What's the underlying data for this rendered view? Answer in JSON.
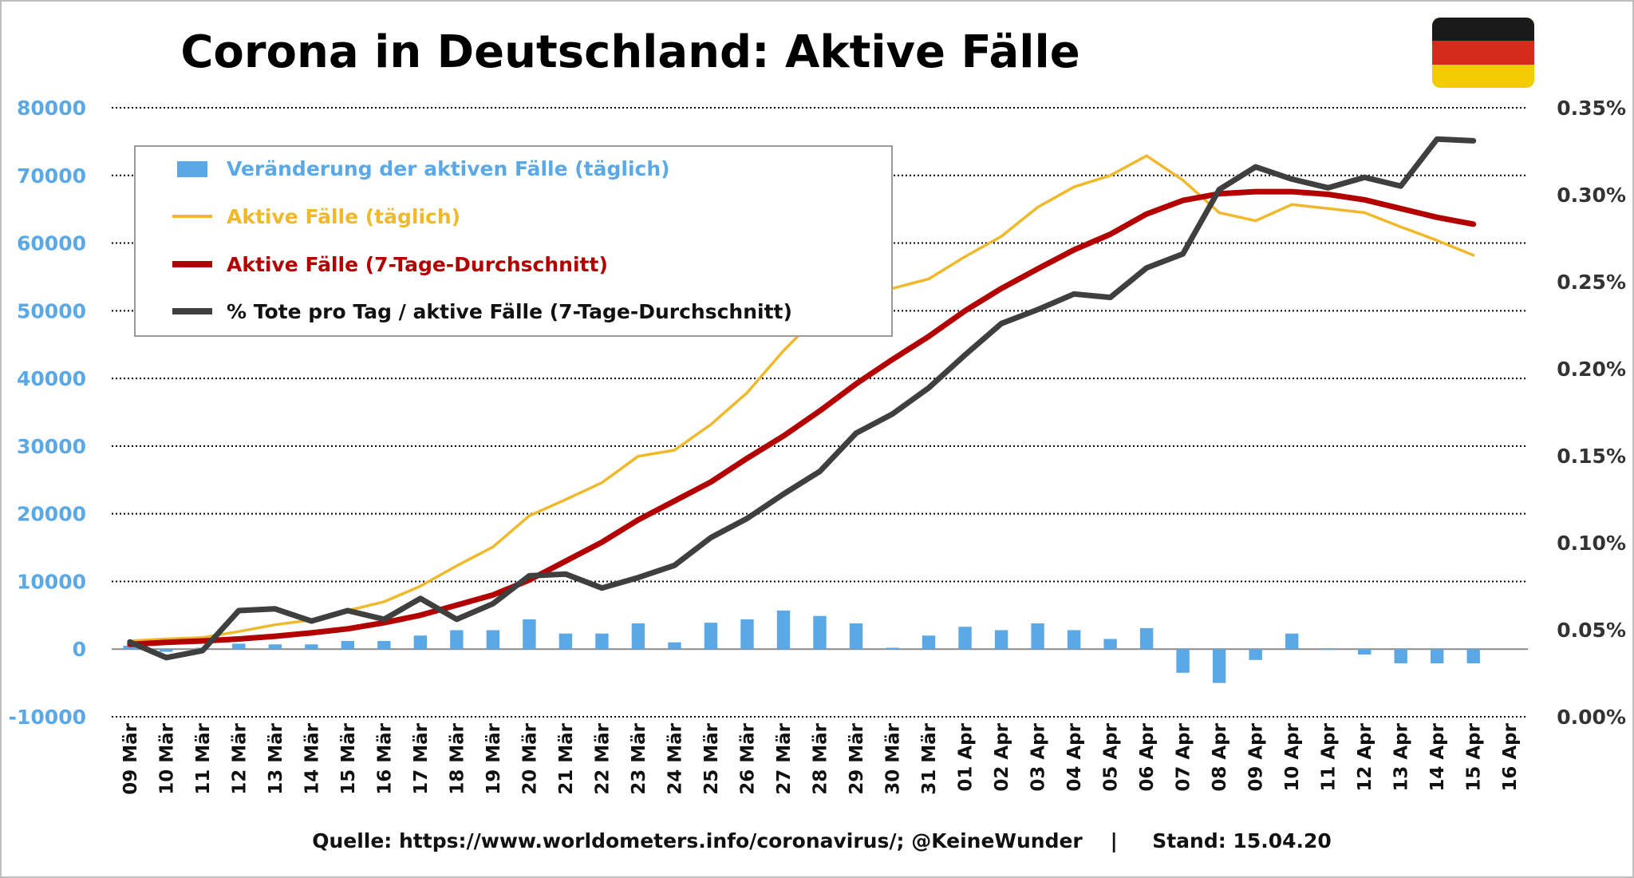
{
  "title": "Corona in Deutschland: Aktive Fälle",
  "source": "Quelle: https://www.worldometers.info/coronavirus/; @KeineWunder    |     Stand: 15.04.20",
  "flag": {
    "icon": "germany-flag-icon",
    "colors": [
      "#1a1a1a",
      "#d52b1e",
      "#f2cc00"
    ]
  },
  "colors": {
    "bars": "#5aa9e6",
    "active_daily": "#f0b92b",
    "active_avg": "#b30000",
    "deaths_pct": "#3f3f3f",
    "grid": "#000000"
  },
  "legend": [
    {
      "label": "Veränderung der aktiven Fälle (täglich)",
      "color": "#5aa9e6",
      "kind": "bar"
    },
    {
      "label": "Aktive Fälle (täglich)",
      "color": "#f0b92b",
      "kind": "thin-line"
    },
    {
      "label": "Aktive Fälle (7-Tage-Durchschnitt)",
      "color": "#b30000",
      "kind": "thick-line"
    },
    {
      "label": "% Tote pro Tag / aktive Fälle (7-Tage-Durchschnitt)",
      "color": "#3f3f3f",
      "kind": "thick-line"
    }
  ],
  "chart_data": {
    "type": "bar",
    "categories": [
      "09 Mär",
      "10 Mär",
      "11 Mär",
      "12 Mär",
      "13 Mär",
      "14 Mär",
      "15 Mär",
      "16 Mär",
      "17 Mär",
      "18 Mär",
      "19 Mär",
      "20 Mär",
      "21 Mär",
      "22 Mär",
      "23 Mär",
      "24 Mär",
      "25 Mär",
      "26 Mär",
      "27 Mär",
      "28 Mär",
      "29 Mär",
      "30 Mär",
      "31 Mär",
      "01 Apr",
      "02 Apr",
      "03 Apr",
      "04 Apr",
      "05 Apr",
      "06 Apr",
      "07 Apr",
      "08 Apr",
      "09 Apr",
      "10 Apr",
      "11 Apr",
      "12 Apr",
      "13 Apr",
      "14 Apr",
      "15 Apr",
      "16 Apr"
    ],
    "y_left": {
      "ylim": [
        -10000,
        80000
      ],
      "ticks": [
        -10000,
        0,
        10000,
        20000,
        30000,
        40000,
        50000,
        60000,
        70000,
        80000
      ],
      "tick_labels": [
        "-10000",
        "0",
        "10000",
        "20000",
        "30000",
        "40000",
        "50000",
        "60000",
        "70000",
        "80000"
      ]
    },
    "y_right": {
      "ylim": [
        0,
        0.35
      ],
      "ticks": [
        0,
        0.05,
        0.1,
        0.15,
        0.2,
        0.25,
        0.3,
        0.35
      ],
      "tick_labels": [
        "0.00%",
        "0.05%",
        "0.10%",
        "0.15%",
        "0.20%",
        "0.25%",
        "0.30%",
        "0.35%"
      ]
    },
    "grid": true,
    "legend_position": "top-left",
    "series": [
      {
        "name": "Veränderung der aktiven Fälle (täglich)",
        "type": "bar",
        "axis": "left",
        "values": [
          500,
          -400,
          200,
          800,
          700,
          700,
          1200,
          1200,
          2000,
          2800,
          2800,
          4400,
          2300,
          2300,
          3800,
          1000,
          3900,
          4400,
          5700,
          4900,
          3800,
          200,
          2000,
          3300,
          2800,
          3800,
          2800,
          1500,
          3100,
          -3500,
          -5000,
          -1600,
          2300,
          -100,
          -800,
          -2100,
          -2100,
          -2100,
          null
        ]
      },
      {
        "name": "Aktive Fälle (täglich)",
        "type": "line",
        "axis": "left",
        "values": [
          1200,
          1500,
          1700,
          2600,
          3600,
          4300,
          5700,
          7000,
          9300,
          12300,
          15100,
          19700,
          22100,
          24600,
          28500,
          29400,
          33200,
          37900,
          44100,
          49500,
          52300,
          53300,
          54700,
          58000,
          61000,
          65300,
          68300,
          70000,
          72900,
          69300,
          64500,
          63300,
          65700,
          65100,
          64500,
          62400,
          60400,
          58200,
          null
        ]
      },
      {
        "name": "Aktive Fälle (7-Tage-Durchschnitt)",
        "type": "line",
        "axis": "left",
        "values": [
          700,
          1000,
          1200,
          1500,
          1900,
          2400,
          3000,
          3900,
          5000,
          6500,
          8000,
          10200,
          13000,
          15800,
          19100,
          21900,
          24700,
          28200,
          31500,
          35200,
          39200,
          42800,
          46200,
          50000,
          53300,
          56200,
          59000,
          61300,
          64300,
          66300,
          67300,
          67600,
          67600,
          67200,
          66400,
          65100,
          63800,
          62800,
          null
        ]
      },
      {
        "name": "% Tote pro Tag / aktive Fälle (7-Tage-Durchschnitt)",
        "type": "line",
        "axis": "right",
        "values": [
          0.043,
          0.034,
          0.038,
          0.061,
          0.062,
          0.055,
          0.061,
          0.056,
          0.068,
          0.056,
          0.065,
          0.081,
          0.082,
          0.074,
          0.08,
          0.087,
          0.103,
          0.114,
          0.128,
          0.141,
          0.163,
          0.174,
          0.189,
          0.208,
          0.226,
          0.234,
          0.243,
          0.241,
          0.258,
          0.266,
          0.303,
          0.316,
          0.309,
          0.304,
          0.31,
          0.305,
          0.332,
          0.331,
          null
        ]
      }
    ]
  }
}
